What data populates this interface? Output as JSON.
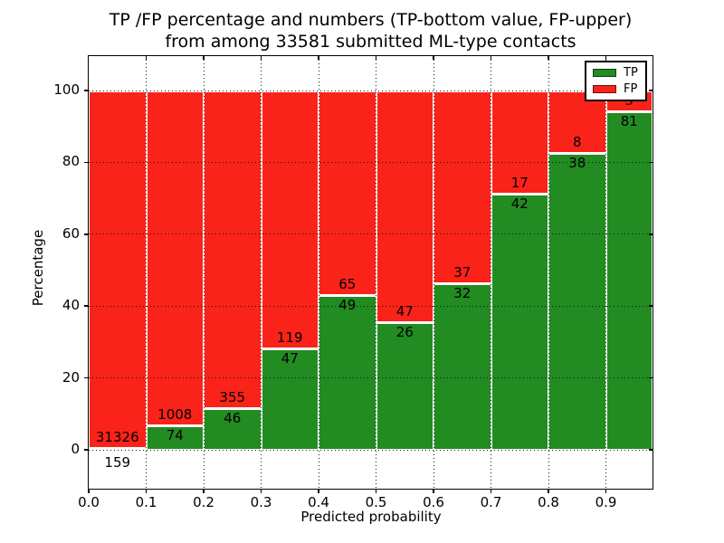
{
  "title": {
    "line1": "TP /FP percentage and numbers (TP-bottom value, FP-upper)",
    "line2": "from among 33581 submitted ML-type contacts"
  },
  "axes": {
    "xlabel": "Predicted probability",
    "ylabel": "Percentage",
    "xticks": [
      "0.0",
      "0.1",
      "0.2",
      "0.3",
      "0.4",
      "0.5",
      "0.6",
      "0.7",
      "0.8",
      "0.9"
    ],
    "yticks": [
      0,
      20,
      40,
      60,
      80,
      100
    ]
  },
  "legend": {
    "items": [
      {
        "label": "TP",
        "color": "#228b22"
      },
      {
        "label": "FP",
        "color": "#fa2319"
      }
    ],
    "position": "upper right"
  },
  "chart_data": {
    "type": "bar",
    "variant": "stacked-percentage",
    "title": "TP /FP percentage and numbers (TP-bottom value, FP-upper)\nfrom among 33581 submitted ML-type contacts",
    "xlabel": "Predicted probability",
    "ylabel": "Percentage",
    "total_contacts": 33581,
    "bin_width": 0.1,
    "bin_starts": [
      0.0,
      0.1,
      0.2,
      0.3,
      0.4,
      0.5,
      0.6,
      0.7,
      0.8,
      0.9
    ],
    "ylim": [
      0,
      100
    ],
    "grid": "dotted",
    "legend_position": "upper right",
    "series": [
      {
        "name": "TP",
        "color": "#228b22",
        "counts": [
          159,
          74,
          46,
          47,
          49,
          26,
          32,
          42,
          38,
          81
        ],
        "percent_of_bin": [
          0.5,
          6.8,
          11.5,
          28.3,
          43.0,
          35.6,
          46.4,
          71.2,
          82.6,
          94.2
        ]
      },
      {
        "name": "FP",
        "color": "#fa2319",
        "counts": [
          31326,
          1008,
          355,
          119,
          65,
          47,
          37,
          17,
          8,
          5
        ],
        "percent_of_bin": [
          99.5,
          93.2,
          88.5,
          71.7,
          57.0,
          64.4,
          53.6,
          28.8,
          17.4,
          5.8
        ]
      }
    ],
    "note": "Counts are printed on each bar: TP value at bottom (green), FP value above (red). The FP count label of the 0.9-1.0 bar is mostly hidden behind the legend."
  }
}
